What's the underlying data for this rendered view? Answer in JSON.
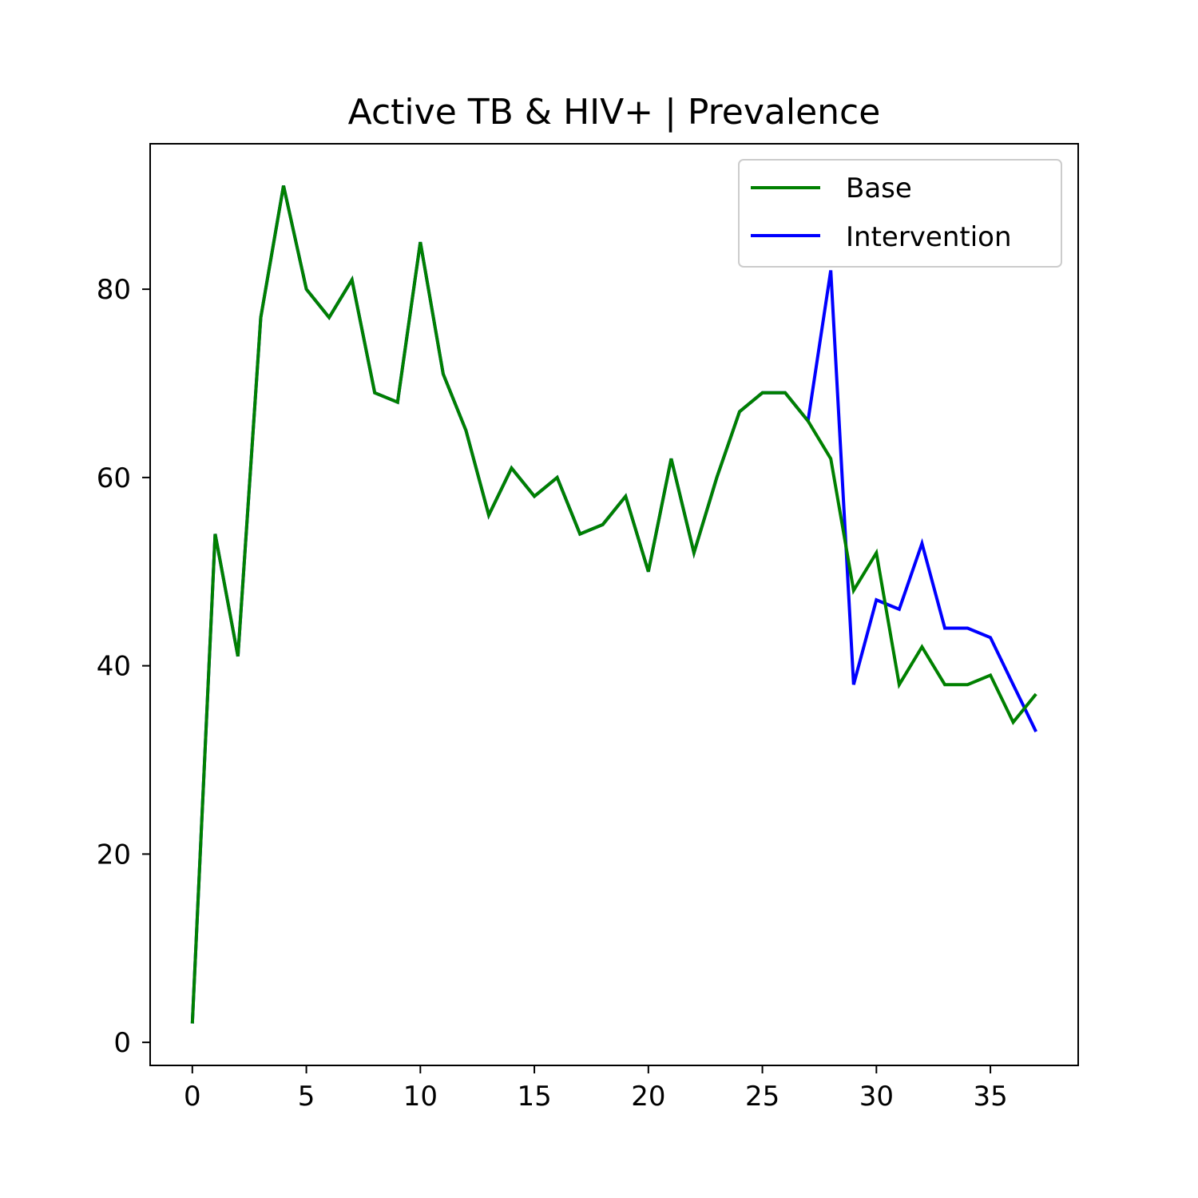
{
  "chart_data": {
    "type": "line",
    "title": "Active TB  & HIV+ | Prevalence",
    "xlabel": "",
    "ylabel": "",
    "xlim": [
      -1.85,
      38.85
    ],
    "ylim": [
      -2.45,
      95.45
    ],
    "xticks": [
      0,
      5,
      10,
      15,
      20,
      25,
      30,
      35
    ],
    "yticks": [
      0,
      20,
      40,
      60,
      80
    ],
    "grid": false,
    "legend_position": "upper right",
    "x": [
      0,
      1,
      2,
      3,
      4,
      5,
      6,
      7,
      8,
      9,
      10,
      11,
      12,
      13,
      14,
      15,
      16,
      17,
      18,
      19,
      20,
      21,
      22,
      23,
      24,
      25,
      26,
      27,
      28,
      29,
      30,
      31,
      32,
      33,
      34,
      35,
      36,
      37
    ],
    "series": [
      {
        "name": "Intervention",
        "color": "#0000ff",
        "values": [
          2,
          54,
          41,
          77,
          91,
          80,
          77,
          81,
          69,
          68,
          85,
          71,
          65,
          56,
          61,
          58,
          60,
          54,
          55,
          58,
          50,
          62,
          52,
          60,
          67,
          69,
          69,
          66,
          82,
          38,
          47,
          46,
          53,
          44,
          44,
          43,
          38,
          33
        ]
      },
      {
        "name": "Base",
        "color": "#008000",
        "values": [
          2,
          54,
          41,
          77,
          91,
          80,
          77,
          81,
          69,
          68,
          85,
          71,
          65,
          56,
          61,
          58,
          60,
          54,
          55,
          58,
          50,
          62,
          52,
          60,
          67,
          69,
          69,
          66,
          62,
          48,
          52,
          38,
          42,
          38,
          38,
          39,
          34,
          37
        ]
      }
    ],
    "legend": [
      {
        "label": "Base",
        "color": "#008000"
      },
      {
        "label": "Intervention",
        "color": "#0000ff"
      }
    ]
  }
}
